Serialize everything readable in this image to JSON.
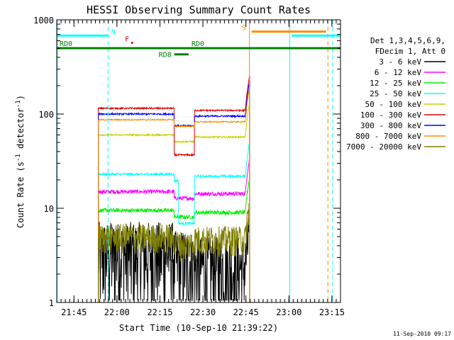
{
  "chart_data": {
    "type": "line",
    "title": "HESSI Observing Summary Count Rates",
    "xlabel": "Start Time (10-Sep-10 21:39:22)",
    "ylabel_main": "Count Rate (s",
    "ylabel_sup1": "-1",
    "ylabel_mid": " detector",
    "ylabel_sup2": "-1",
    "ylabel_end": ")",
    "y_scale": "log",
    "ylim": [
      1,
      1000
    ],
    "xlim_minutes": [
      0,
      99
    ],
    "x_ticks": [
      {
        "label": "21:45",
        "t": 6
      },
      {
        "label": "22:00",
        "t": 21
      },
      {
        "label": "22:15",
        "t": 36
      },
      {
        "label": "22:30",
        "t": 51
      },
      {
        "label": "22:45",
        "t": 66
      },
      {
        "label": "23:00",
        "t": 81
      },
      {
        "label": "23:15",
        "t": 96
      }
    ],
    "y_ticks": [
      {
        "label": "1",
        "v": 1
      },
      {
        "label": "10",
        "v": 10
      },
      {
        "label": "100",
        "v": 100
      },
      {
        "label": "1000",
        "v": 1000
      }
    ],
    "legend": {
      "header1": "Det 1,3,4,5,6,9,",
      "header2": "FDecim 1, Att 0",
      "placement": "right"
    },
    "series": [
      {
        "name": "3 - 6 keV",
        "color": "#000000",
        "base": 3.5,
        "noise": 0.35
      },
      {
        "name": "6 - 12 keV",
        "color": "#ff00ff",
        "base": 15,
        "noise": 0.05
      },
      {
        "name": "12 - 25 keV",
        "color": "#00ee00",
        "base": 9.5,
        "noise": 0.05
      },
      {
        "name": "25 - 50 keV",
        "color": "#00ffff",
        "base": 23,
        "noise": 0.03
      },
      {
        "name": "50 - 100 keV",
        "color": "#cccc00",
        "base": 60,
        "noise": 0.02
      },
      {
        "name": "100 - 300 keV",
        "color": "#dd0000",
        "base": 115,
        "noise": 0.02
      },
      {
        "name": "300 - 800 keV",
        "color": "#0000ff",
        "base": 100,
        "noise": 0.02
      },
      {
        "name": "800 - 7000 keV",
        "color": "#ff8c00",
        "base": 87,
        "noise": 0.015
      },
      {
        "name": "7000 - 20000 keV",
        "color": "#808000",
        "base": 5,
        "noise": 0.12
      }
    ],
    "gaps_minutes": [
      [
        0,
        14.5
      ],
      [
        67.3,
        99
      ]
    ],
    "dip_minutes": [
      [
        41,
        48
      ]
    ],
    "flags": [
      {
        "label": "N",
        "color": "#00ffff",
        "t0": 0,
        "t1": 18,
        "v": 680
      },
      {
        "label": "S",
        "color": "#ff8c00",
        "t0": 68,
        "t1": 94,
        "v": 750
      },
      {
        "label": "F",
        "color": "#dd0000",
        "t0": 26,
        "t1": 26.6,
        "v": 570
      },
      {
        "label": "RD0",
        "color": "#008000",
        "t0": 0,
        "t1": 99,
        "v": 500
      },
      {
        "label": "RD8",
        "color": "#008000",
        "t0": 41,
        "t1": 46,
        "v": 430
      },
      {
        "label": "RD0",
        "color": "#008000",
        "t0": 46,
        "t1": 46,
        "v": 500
      }
    ],
    "n_flag_segment": {
      "t0": 82,
      "t1": 99,
      "v": 680,
      "color": "#00ffff"
    },
    "vlines_minutes": [
      {
        "t": 0.2,
        "color": "#00ffff",
        "dashed": false
      },
      {
        "t": 17.9,
        "color": "#00ffff",
        "dashed": true
      },
      {
        "t": 67.2,
        "color": "#ff8c00",
        "dashed": false
      },
      {
        "t": 81.3,
        "color": "#00ffff",
        "dashed": false
      },
      {
        "t": 94.6,
        "color": "#ff8c00",
        "dashed": true
      },
      {
        "t": 96.3,
        "color": "#00ffff",
        "dashed": true
      }
    ]
  },
  "footer": {
    "timestamp": "11-Sep-2010 09:17"
  }
}
